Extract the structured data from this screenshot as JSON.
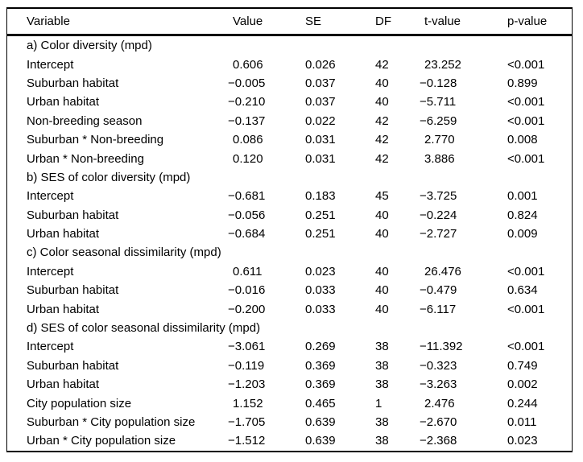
{
  "table": {
    "columns": [
      "Variable",
      "Value",
      "SE",
      "DF",
      "t-value",
      "p-value"
    ],
    "sections": [
      {
        "label": "a) Color diversity (mpd)",
        "rows": [
          [
            "Intercept",
            "0.606",
            "0.026",
            "42",
            "23.252",
            "<0.001"
          ],
          [
            "Suburban habitat",
            "−0.005",
            "0.037",
            "40",
            "−0.128",
            "0.899"
          ],
          [
            "Urban habitat",
            "−0.210",
            "0.037",
            "40",
            "−5.711",
            "<0.001"
          ],
          [
            "Non-breeding season",
            "−0.137",
            "0.022",
            "42",
            "−6.259",
            "<0.001"
          ],
          [
            "Suburban * Non-breeding",
            "0.086",
            "0.031",
            "42",
            "2.770",
            "0.008"
          ],
          [
            "Urban * Non-breeding",
            "0.120",
            "0.031",
            "42",
            "3.886",
            "<0.001"
          ]
        ]
      },
      {
        "label": "b) SES of color diversity (mpd)",
        "rows": [
          [
            "Intercept",
            "−0.681",
            "0.183",
            "45",
            "−3.725",
            "0.001"
          ],
          [
            "Suburban habitat",
            "−0.056",
            "0.251",
            "40",
            "−0.224",
            "0.824"
          ],
          [
            "Urban habitat",
            "−0.684",
            "0.251",
            "40",
            "−2.727",
            "0.009"
          ]
        ]
      },
      {
        "label": "c) Color seasonal dissimilarity (mpd)",
        "rows": [
          [
            "Intercept",
            "0.611",
            "0.023",
            "40",
            "26.476",
            "<0.001"
          ],
          [
            "Suburban habitat",
            "−0.016",
            "0.033",
            "40",
            "−0.479",
            "0.634"
          ],
          [
            "Urban habitat",
            "−0.200",
            "0.033",
            "40",
            "−6.117",
            "<0.001"
          ]
        ]
      },
      {
        "label": "d) SES of color seasonal dissimilarity (mpd)",
        "rows": [
          [
            "Intercept",
            "−3.061",
            "0.269",
            "38",
            "−11.392",
            "<0.001"
          ],
          [
            "Suburban habitat",
            "−0.119",
            "0.369",
            "38",
            "−0.323",
            "0.749"
          ],
          [
            "Urban habitat",
            "−1.203",
            "0.369",
            "38",
            "−3.263",
            "0.002"
          ],
          [
            "City population size",
            "1.152",
            "0.465",
            "1",
            "2.476",
            "0.244"
          ],
          [
            "Suburban * City population size",
            "−1.705",
            "0.639",
            "38",
            "−2.670",
            "0.011"
          ],
          [
            "Urban * City population size",
            "−1.512",
            "0.639",
            "38",
            "−2.368",
            "0.023"
          ]
        ]
      }
    ]
  },
  "colors": {
    "text": "#000000",
    "background": "#ffffff",
    "rule": "#000000"
  }
}
